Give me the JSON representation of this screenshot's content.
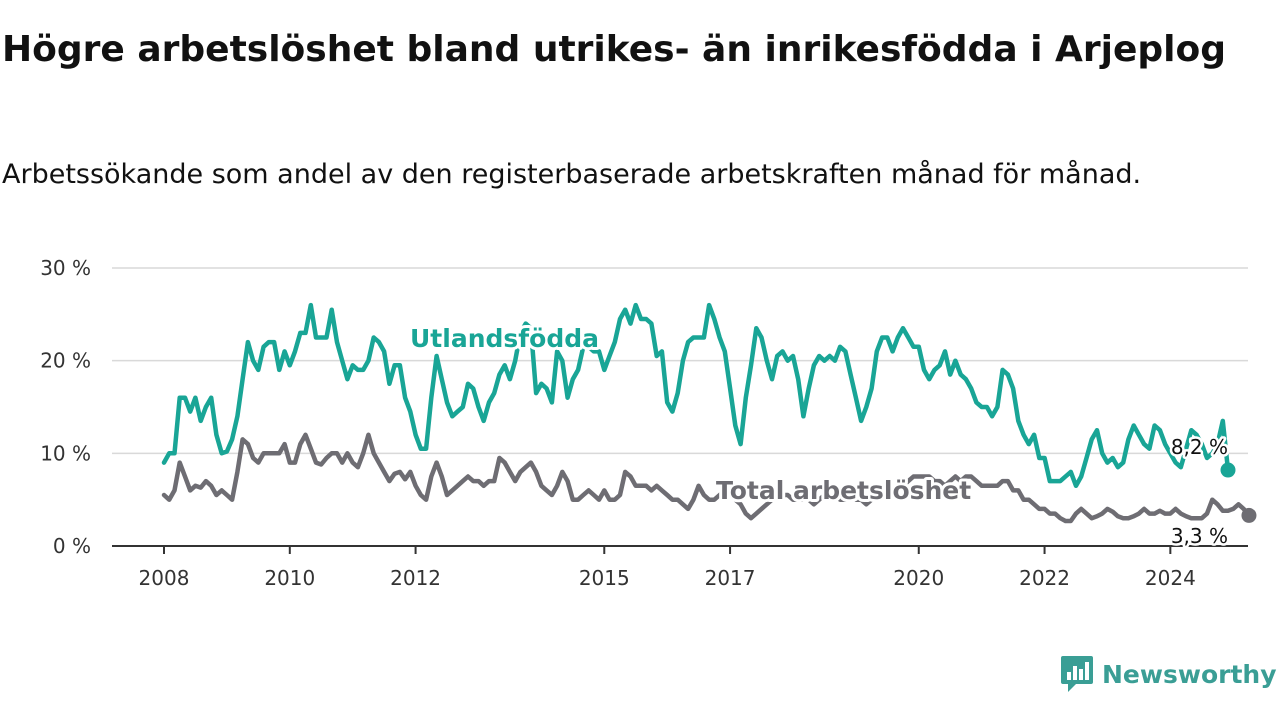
{
  "header": {
    "title": "Högre arbetslöshet bland utrikes- än inrikesfödda i Arjeplog",
    "subtitle": "Arbetssökande som andel av den registerbaserade arbetskraften månad för månad."
  },
  "brand": {
    "name": "Newsworthy",
    "icon": "newsworthy-logo-icon",
    "color": "#3a9e95"
  },
  "colors": {
    "utlandsfodda": "#19a596",
    "total": "#6e6d73",
    "grid": "#d9d9d9",
    "axis": "#333333"
  },
  "chart_data": {
    "type": "line",
    "title": "Högre arbetslöshet bland utrikes- än inrikesfödda i Arjeplog",
    "subtitle": "Arbetssökande som andel av den registerbaserade arbetskraften månad för månad.",
    "x_start": "2008-01",
    "x_step": "month",
    "ylim": [
      0,
      30
    ],
    "y_ticks": [
      {
        "value": 0,
        "label": "0 %"
      },
      {
        "value": 10,
        "label": "10 %"
      },
      {
        "value": 20,
        "label": "20 %"
      },
      {
        "value": 30,
        "label": "30 %"
      }
    ],
    "x_ticks": [
      "2008",
      "2010",
      "2012",
      "2015",
      "2017",
      "2020",
      "2022",
      "2024"
    ],
    "grid": true,
    "series": [
      {
        "name": "Utlandsfödda",
        "color": "#19a596",
        "end_label": "8,2 %",
        "values": [
          9,
          10,
          10,
          16,
          16,
          14.5,
          16,
          13.5,
          15,
          16,
          12,
          10,
          10.2,
          11.5,
          14,
          18,
          22,
          20,
          19,
          21.5,
          22,
          22,
          19,
          21,
          19.5,
          21,
          23,
          23,
          26,
          22.5,
          22.5,
          22.5,
          25.5,
          22,
          20,
          18,
          19.5,
          19,
          19,
          20,
          22.5,
          22,
          21,
          17.5,
          19.5,
          19.5,
          16,
          14.5,
          12,
          10.5,
          10.5,
          16,
          20.5,
          18,
          15.5,
          14,
          14.5,
          15,
          17.5,
          17,
          15,
          13.5,
          15.5,
          16.5,
          18.5,
          19.5,
          18,
          20,
          23,
          24,
          23.5,
          16.5,
          17.5,
          17,
          15.5,
          21,
          20,
          16,
          18,
          19,
          21.5,
          21.5,
          21,
          21,
          19,
          20.5,
          22,
          24.5,
          25.5,
          24,
          26,
          24.5,
          24.5,
          24,
          20.5,
          21,
          15.5,
          14.5,
          16.5,
          20,
          22,
          22.5,
          22.5,
          22.5,
          26,
          24.5,
          22.5,
          21,
          17,
          13,
          11,
          16,
          19.5,
          23.5,
          22.5,
          20,
          18,
          20.5,
          21,
          20,
          20.5,
          18,
          14,
          17,
          19.5,
          20.5,
          20,
          20.5,
          20,
          21.5,
          21,
          18.5,
          16,
          13.5,
          15,
          17,
          21,
          22.5,
          22.5,
          21,
          22.5,
          23.5,
          22.5,
          21.5,
          21.5,
          19,
          18,
          19,
          19.5,
          21,
          18.5,
          20,
          18.5,
          18,
          17,
          15.5,
          15,
          15,
          14,
          15,
          19,
          18.5,
          17,
          13.5,
          12,
          11,
          12,
          9.5,
          9.5,
          7,
          7,
          7,
          7.5,
          8,
          6.5,
          7.5,
          9.5,
          11.5,
          12.5,
          10,
          9,
          9.5,
          8.5,
          9,
          11.5,
          13,
          12,
          11,
          10.5,
          13,
          12.5,
          11,
          10,
          9,
          8.5,
          10.5,
          12.5,
          12,
          11,
          9.5,
          10,
          11,
          13.5,
          8.2
        ]
      },
      {
        "name": "Total arbetslöshet",
        "color": "#6e6d73",
        "end_label": "3,3 %",
        "values": [
          5.5,
          5,
          6,
          9,
          7.5,
          6,
          6.5,
          6.3,
          7,
          6.5,
          5.5,
          6,
          5.5,
          5,
          8,
          11.5,
          11,
          9.5,
          9,
          10,
          10,
          10,
          10,
          11,
          9,
          9,
          11,
          12,
          10.5,
          9,
          8.8,
          9.5,
          10,
          10,
          9,
          10,
          9,
          8.5,
          10,
          12,
          10,
          9,
          8,
          7,
          7.8,
          8,
          7.2,
          8,
          6.5,
          5.5,
          5,
          7.5,
          9,
          7.5,
          5.5,
          6,
          6.5,
          7,
          7.5,
          7,
          7,
          6.5,
          7,
          7,
          9.5,
          9,
          8,
          7,
          8,
          8.5,
          9,
          8,
          6.5,
          6,
          5.5,
          6.5,
          8,
          7,
          5,
          5,
          5.5,
          6,
          5.5,
          5,
          6,
          5,
          5,
          5.5,
          8,
          7.5,
          6.5,
          6.5,
          6.5,
          6,
          6.5,
          6,
          5.5,
          5,
          5,
          4.5,
          4,
          5,
          6.5,
          5.5,
          5,
          5,
          5.5,
          6,
          5.5,
          5,
          4.5,
          3.5,
          3,
          3.5,
          4,
          4.5,
          5,
          5.5,
          5.5,
          5.5,
          5,
          5,
          5,
          5,
          4.5,
          5,
          5.5,
          6,
          5.5,
          5,
          5,
          5.5,
          5,
          5,
          4.5,
          5,
          5.5,
          5.5,
          6,
          6,
          6.5,
          6.5,
          7,
          7.5,
          7.5,
          7.5,
          7.5,
          7,
          7,
          6.5,
          7,
          7.5,
          7,
          7.5,
          7.5,
          7,
          6.5,
          6.5,
          6.5,
          6.5,
          7,
          7,
          6,
          6,
          5,
          5,
          4.5,
          4,
          4,
          3.5,
          3.5,
          3,
          2.7,
          2.7,
          3.5,
          4,
          3.5,
          3,
          3.2,
          3.5,
          4,
          3.7,
          3.2,
          3,
          3,
          3.2,
          3.5,
          4,
          3.5,
          3.5,
          3.8,
          3.5,
          3.5,
          4,
          3.5,
          3.2,
          3,
          3,
          3,
          3.5,
          5,
          4.5,
          3.8,
          3.8,
          4,
          4.5,
          4,
          3.3
        ]
      }
    ]
  }
}
